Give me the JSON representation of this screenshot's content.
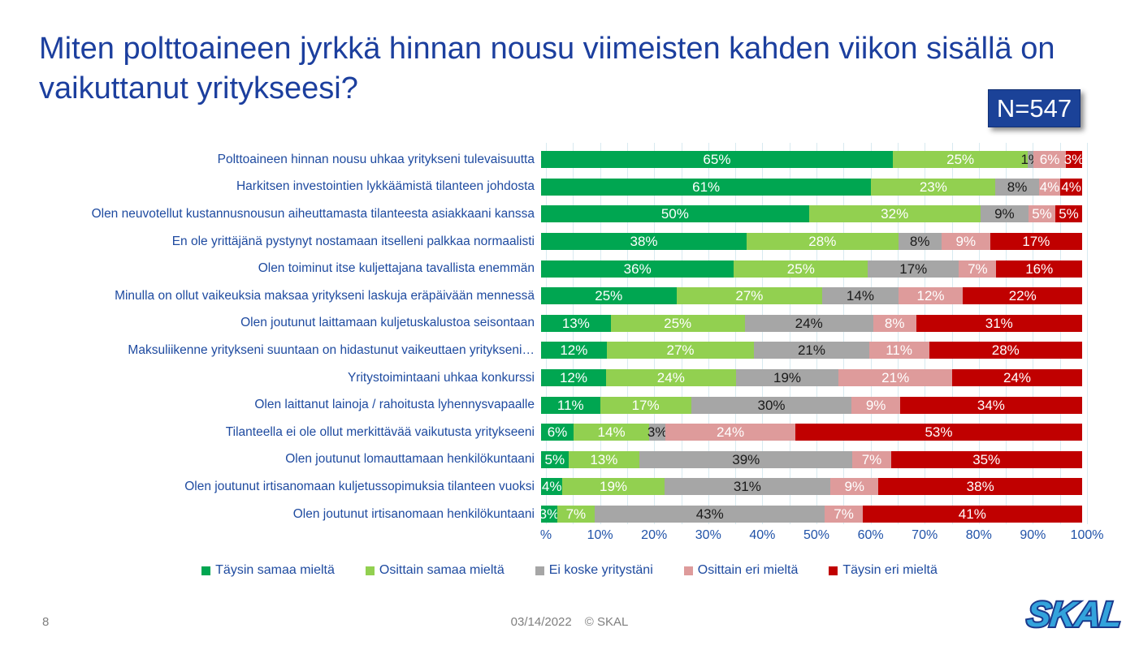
{
  "slide": {
    "title": "Miten polttoaineen jyrkkä hinnan nousu viimeisten kahden viikon sisällä on vaikuttanut yritykseesi?",
    "badge": "N=547",
    "page_number": "8",
    "footer_date": "03/14/2022",
    "footer_copyright": "© SKAL",
    "logo_text": "SKAL"
  },
  "colors": {
    "title_blue": "#1c3f9e",
    "label_blue": "#1f4ba0",
    "badge_bg": "#1b4298",
    "footer_gray": "#7f7f7f",
    "gridline": "#d8eaf0",
    "logo_fill": "#33a3dc",
    "logo_stroke": "#1b3a8c"
  },
  "chart_data": {
    "type": "bar",
    "orientation": "horizontal",
    "stacked": true,
    "stacked_to_100": true,
    "title": "",
    "xlabel": "",
    "ylabel": "",
    "xlim": [
      0,
      100
    ],
    "grid": true,
    "grid_interval_pct": 5,
    "legend_position": "bottom",
    "x_ticks": [
      "%",
      "10%",
      "20%",
      "30%",
      "40%",
      "50%",
      "60%",
      "70%",
      "80%",
      "90%",
      "100%"
    ],
    "categories": [
      "Polttoaineen hinnan nousu uhkaa yritykseni tulevaisuutta",
      "Harkitsen investointien lykkäämistä tilanteen johdosta",
      "Olen neuvotellut kustannusnousun aiheuttamasta tilanteesta asiakkaani kanssa",
      "En ole yrittäjänä pystynyt nostamaan itselleni palkkaa normaalisti",
      "Olen toiminut itse kuljettajana tavallista enemmän",
      "Minulla on ollut vaikeuksia maksaa yritykseni laskuja eräpäivään mennessä",
      "Olen joutunut laittamaan kuljetuskalustoa seisontaan",
      "Maksuliikenne yritykseni suuntaan on hidastunut vaikeuttaen yritykseni…",
      "Yritystoimintaani uhkaa konkurssi",
      "Olen laittanut lainoja / rahoitusta lyhennysvapaalle",
      "Tilanteella ei ole ollut merkittävää vaikutusta yritykseeni",
      "Olen joutunut lomauttamaan henkilökuntaani",
      "Olen joutunut irtisanomaan kuljetussopimuksia tilanteen vuoksi",
      "Olen joutunut irtisanomaan henkilökuntaani"
    ],
    "series": [
      {
        "name": "Täysin samaa mieltä",
        "color": "#00A651",
        "label_color": "white",
        "values": [
          65,
          61,
          50,
          38,
          36,
          25,
          13,
          12,
          12,
          11,
          6,
          5,
          4,
          3
        ]
      },
      {
        "name": "Osittain samaa mieltä",
        "color": "#92D050",
        "label_color": "white",
        "values": [
          25,
          23,
          32,
          28,
          25,
          27,
          25,
          27,
          24,
          17,
          14,
          13,
          19,
          7
        ]
      },
      {
        "name": "Ei koske yritystäni",
        "color": "#A6A6A6",
        "label_color": "black",
        "values": [
          1,
          8,
          9,
          8,
          17,
          14,
          24,
          21,
          19,
          30,
          3,
          39,
          31,
          43
        ]
      },
      {
        "name": "Osittain eri mieltä",
        "color": "#DE9B9B",
        "label_color": "white",
        "values": [
          6,
          4,
          5,
          9,
          7,
          12,
          8,
          11,
          21,
          9,
          24,
          7,
          9,
          7
        ]
      },
      {
        "name": "Täysin eri mieltä",
        "color": "#C00000",
        "label_color": "white",
        "values": [
          3,
          4,
          5,
          17,
          16,
          22,
          31,
          28,
          24,
          34,
          53,
          35,
          38,
          41
        ]
      }
    ]
  }
}
